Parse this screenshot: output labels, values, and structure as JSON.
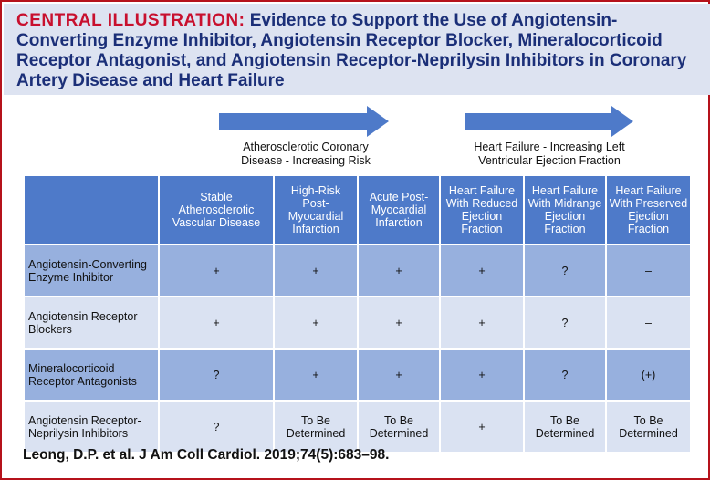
{
  "header": {
    "label": "CENTRAL ILLUSTRATION:",
    "title": "Evidence to Support the Use of Angiotensin-Converting Enzyme Inhibitor, Angiotensin Receptor Blocker, Mineralocorticoid Receptor Antagonist, and Angiotensin Receptor-Neprilysin Inhibitors in Coronary Artery Disease and Heart Failure"
  },
  "arrows": [
    {
      "line1": "Atherosclerotic Coronary",
      "line2": "Disease - Increasing Risk"
    },
    {
      "line1": "Heart Failure - Increasing Left",
      "line2": "Ventricular Ejection Fraction"
    }
  ],
  "table": {
    "columns": [
      "Stable Atherosclerotic Vascular Disease",
      "High-Risk Post-Myocardial Infarction",
      "Acute Post-Myocardial Infarction",
      "Heart Failure With Reduced Ejection Fraction",
      "Heart Failure With Midrange Ejection Fraction",
      "Heart Failure With Preserved Ejection Fraction"
    ],
    "rows": [
      {
        "label": "Angiotensin-Converting Enzyme Inhibitor",
        "cells": [
          "+",
          "+",
          "+",
          "+",
          "?",
          "–"
        ]
      },
      {
        "label": "Angiotensin Receptor Blockers",
        "cells": [
          "+",
          "+",
          "+",
          "+",
          "?",
          "–"
        ]
      },
      {
        "label": "Mineralocorticoid Receptor Antagonists",
        "cells": [
          "?",
          "+",
          "+",
          "+",
          "?",
          "(+)"
        ]
      },
      {
        "label": "Angiotensin Receptor-Neprilysin Inhibitors",
        "cells": [
          "?",
          "To Be Determined",
          "To Be Determined",
          "+",
          "To Be Determined",
          "To Be Determined"
        ]
      }
    ]
  },
  "citation": "Leong, D.P. et al. J Am Coll Cardiol. 2019;74(5):683–98."
}
